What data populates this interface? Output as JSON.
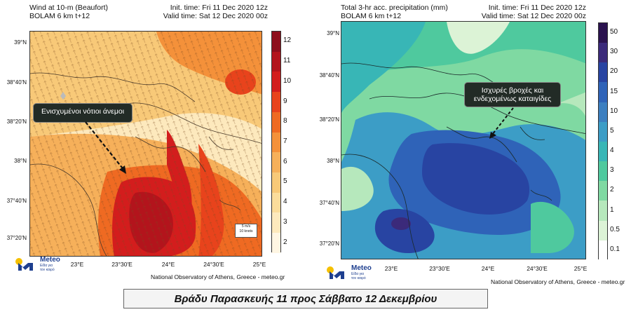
{
  "left_panel": {
    "title_line1": "Wind at 10-m (Beaufort)",
    "title_line2": "BOLAM 6 km t+12",
    "init_time": "Init. time: Fri 11 Dec 2020 12z",
    "valid_time": "Valid time: Sat 12 Dec 2020 00z",
    "y_ticks": [
      "39°N",
      "38°40'N",
      "38°20'N",
      "38°N",
      "37°40'N",
      "37°20'N"
    ],
    "x_ticks": [
      "23°E",
      "23°30'E",
      "24°E",
      "24°30'E",
      "25°E"
    ],
    "colorbar_labels": [
      "12",
      "11",
      "10",
      "9",
      "8",
      "7",
      "6",
      "5",
      "4",
      "3",
      "2"
    ],
    "annotation": "Ενισχυμένοι νότιοι άνεμοι",
    "scale_key_line1": "5 m/s",
    "scale_key_line2": "10 knots",
    "credit": "National Observatory of Athens, Greece - meteo.gr"
  },
  "right_panel": {
    "title_line1": "Total 3-hr acc. precipitation (mm)",
    "title_line2": "BOLAM 6 km t+12",
    "init_time": "Init. time: Fri 11 Dec 2020 12z",
    "valid_time": "Valid time: Sat 12 Dec 2020 00z",
    "y_ticks": [
      "39°N",
      "38°40'N",
      "38°20'N",
      "38°N",
      "37°40'N",
      "37°20'N"
    ],
    "x_ticks": [
      "23°E",
      "23°30'E",
      "24°E",
      "24°30'E",
      "25°E"
    ],
    "colorbar_labels": [
      "50",
      "30",
      "20",
      "15",
      "10",
      "5",
      "4",
      "3",
      "2",
      "1",
      "0.5",
      "0.1"
    ],
    "annotation_line1": "Ισχυρές βροχές και",
    "annotation_line2": "ενδεχομένως καταιγίδες",
    "credit": "National Observatory of Athens, Greece - meteo.gr"
  },
  "logo": {
    "word": "Meteo",
    "tag_line1": "Είδα για",
    "tag_line2": "τον καιρό"
  },
  "footer": {
    "caption": "Βράδυ Παρασκευής 11 προς Σάββατο 12 Δεκεμβρίου"
  },
  "colors": {
    "wind_scale": [
      "#8e0f1c",
      "#b3141c",
      "#d31d1d",
      "#e8431c",
      "#ef6a22",
      "#f4913a",
      "#f6b05a",
      "#f8c978",
      "#fbdc9b",
      "#fde9bd",
      "#fff6e3"
    ],
    "precip_scale": [
      "#2b134f",
      "#3b2a7a",
      "#2844a2",
      "#2f63b8",
      "#3c7fc0",
      "#3c9dc6",
      "#38b6b6",
      "#4fc99e",
      "#7fd9a2",
      "#b6e8bc",
      "#dcf3d6",
      "#ffffff"
    ],
    "logo_blue": "#1e3f8f",
    "logo_yellow": "#f5c000"
  }
}
